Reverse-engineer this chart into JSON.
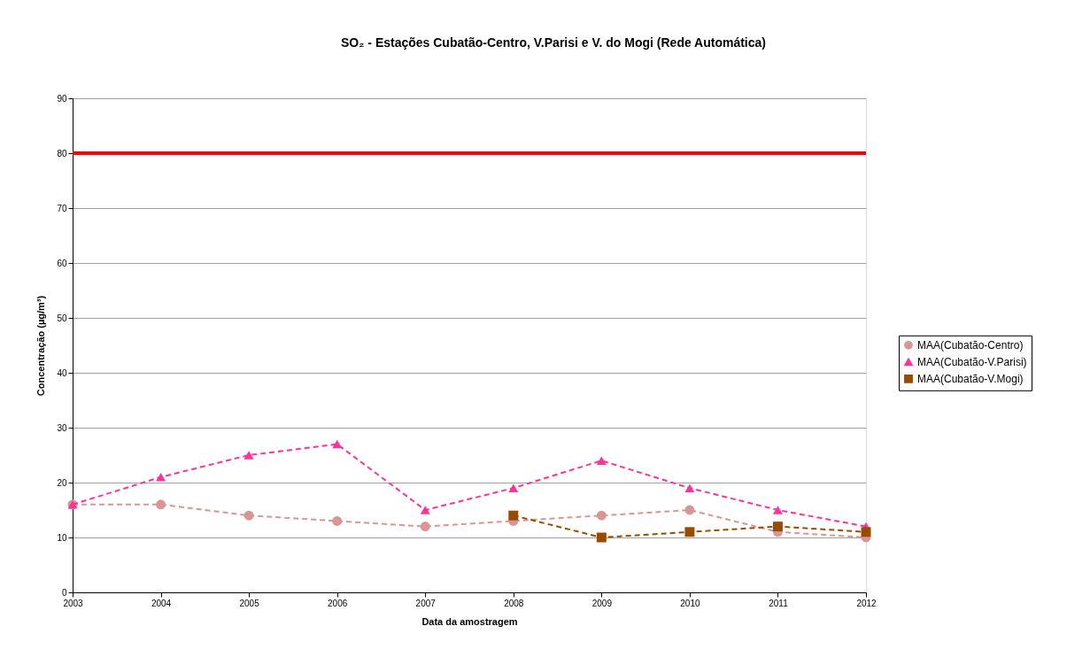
{
  "chart_data": {
    "type": "line",
    "title": "SO₂ -  Estações Cubatão-Centro, V.Parisi e V. do Mogi (Rede Automática)",
    "xlabel": "Data da amostragem",
    "ylabel": "Concentração  (µg/m³)",
    "x": [
      2003,
      2004,
      2005,
      2006,
      2007,
      2008,
      2009,
      2010,
      2011,
      2012
    ],
    "xlim": [
      2003,
      2012
    ],
    "xticks": [
      2003,
      2004,
      2005,
      2006,
      2007,
      2008,
      2009,
      2010,
      2011,
      2012
    ],
    "ylim": [
      0,
      90
    ],
    "yticks": [
      0,
      10,
      20,
      30,
      40,
      50,
      60,
      70,
      80,
      90
    ],
    "grid": "y",
    "legend": "right",
    "line_style": "dashed",
    "ref_lines": [
      {
        "axis": "y",
        "value": 80,
        "color": "#ff0000",
        "line_style": "solid"
      }
    ],
    "series": [
      {
        "name": "MAA(Cubatão-Centro)",
        "color": "#d99694",
        "marker": "circle",
        "values": [
          16,
          16,
          14,
          13,
          12,
          13,
          14,
          15,
          11,
          10
        ]
      },
      {
        "name": "MAA(Cubatão-V.Parisi)",
        "color": "#ff3399",
        "marker": "triangle",
        "values": [
          16,
          21,
          25,
          27,
          15,
          19,
          24,
          19,
          15,
          12
        ]
      },
      {
        "name": "MAA(Cubatão-V.Mogi)",
        "color": "#994c00",
        "marker": "square",
        "values": [
          null,
          null,
          null,
          null,
          null,
          14,
          10,
          11,
          12,
          11
        ]
      }
    ]
  }
}
